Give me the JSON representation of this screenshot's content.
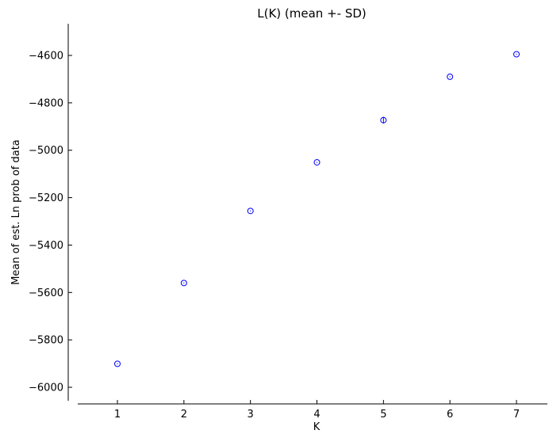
{
  "chart_data": {
    "type": "scatter",
    "title": "L(K) (mean +- SD)",
    "xlabel": "K",
    "ylabel": "Mean of est. Ln prob of data",
    "xlim": [
      0.4,
      7.5
    ],
    "ylim": [
      -6060,
      -4460
    ],
    "xticks": [
      1,
      2,
      3,
      4,
      5,
      6,
      7
    ],
    "yticks": [
      -6000,
      -5800,
      -5600,
      -5400,
      -5200,
      -5000,
      -4800,
      -4600
    ],
    "x": [
      1,
      2,
      3,
      4,
      5,
      6,
      7
    ],
    "y": [
      -5901,
      -5560,
      -5256,
      -5051,
      -4873,
      -4690,
      -4595
    ],
    "sd": [
      2,
      2,
      2,
      2,
      14,
      2,
      2
    ],
    "marker": "open-circle",
    "color": "#0000ff",
    "grid": false
  }
}
